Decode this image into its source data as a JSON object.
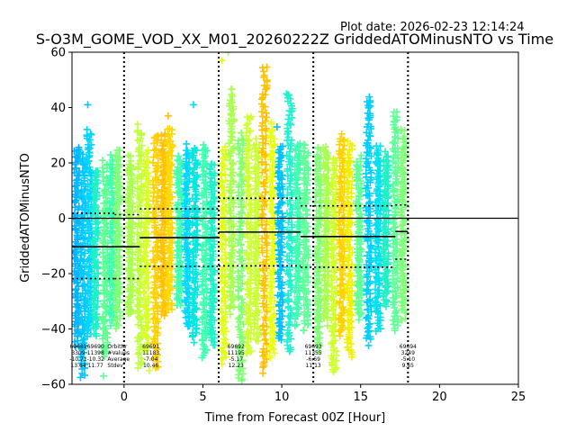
{
  "plot_date": "Plot date: 2026-02-23 12:14:24",
  "chart_data": {
    "type": "scatter",
    "title": "S-O3M_GOME_VOD_XX_M01_20260222Z GriddedATOMinusNTO vs Time",
    "xlabel": "Time from Forecast 00Z [Hour]",
    "ylabel": "GriddedATOMinusNTO",
    "xlim": [
      -3.3,
      25
    ],
    "ylim": [
      -60,
      60
    ],
    "xticks": [
      0,
      5,
      10,
      15,
      20,
      25
    ],
    "yticks": [
      -60,
      -40,
      -20,
      0,
      20,
      40,
      60
    ],
    "forecast_boundaries": [
      0,
      6,
      12,
      18
    ],
    "zero_line": 0,
    "bins": [
      {
        "x0": -3.3,
        "x1": -0.6,
        "mean": -10.3,
        "upper": 1.8,
        "lower": -21.8
      },
      {
        "x0": -0.6,
        "x1": 1.0,
        "mean": -10.3,
        "upper": 1.3,
        "lower": -21.8
      },
      {
        "x0": 1.0,
        "x1": 6.0,
        "mean": -7.0,
        "upper": 3.4,
        "lower": -17.4
      },
      {
        "x0": 6.0,
        "x1": 11.2,
        "mean": -5.0,
        "upper": 7.2,
        "lower": -17.2
      },
      {
        "x0": 11.2,
        "x1": 17.2,
        "mean": -6.6,
        "upper": 4.5,
        "lower": -17.7
      },
      {
        "x0": 17.2,
        "x1": 18.0,
        "mean": -4.8,
        "upper": 4.8,
        "lower": -14.8
      }
    ],
    "point_columns": [
      {
        "x": -3.0,
        "lo": -44,
        "hi": 24,
        "color": "#00b4ff"
      },
      {
        "x": -2.6,
        "lo": -55,
        "hi": 22,
        "color": "#00c8ff"
      },
      {
        "x": -2.2,
        "lo": -40,
        "hi": 30,
        "color": "#00d4ff"
      },
      {
        "x": -1.8,
        "lo": -40,
        "hi": 16,
        "color": "#20f0c8"
      },
      {
        "x": -1.2,
        "lo": -48,
        "hi": 19,
        "color": "#60ff90"
      },
      {
        "x": -0.8,
        "lo": -36,
        "hi": 20,
        "color": "#40ffb0"
      },
      {
        "x": -0.4,
        "lo": -38,
        "hi": 23,
        "color": "#80ff78"
      },
      {
        "x": 0.4,
        "lo": -34,
        "hi": 20,
        "color": "#a8ff50"
      },
      {
        "x": 1.0,
        "lo": -52,
        "hi": 31,
        "color": "#c0ff40"
      },
      {
        "x": 1.4,
        "lo": -46,
        "hi": 22,
        "color": "#d8ff28"
      },
      {
        "x": 2.0,
        "lo": -52,
        "hi": 29,
        "color": "#ffd000"
      },
      {
        "x": 2.5,
        "lo": -34,
        "hi": 28,
        "color": "#ffc000"
      },
      {
        "x": 2.9,
        "lo": -32,
        "hi": 30,
        "color": "#ffd800"
      },
      {
        "x": 3.5,
        "lo": -30,
        "hi": 20,
        "color": "#40ffb0"
      },
      {
        "x": 4.0,
        "lo": -38,
        "hi": 24,
        "color": "#00d8ff"
      },
      {
        "x": 4.5,
        "lo": -42,
        "hi": 24,
        "color": "#00e8e0"
      },
      {
        "x": 5.1,
        "lo": -48,
        "hi": 25,
        "color": "#40ffb0"
      },
      {
        "x": 5.6,
        "lo": -44,
        "hi": 18,
        "color": "#20f0c8"
      },
      {
        "x": 6.3,
        "lo": -50,
        "hi": 24,
        "color": "#e0ff20"
      },
      {
        "x": 6.8,
        "lo": -32,
        "hi": 44,
        "color": "#a8ff50"
      },
      {
        "x": 7.4,
        "lo": -58,
        "hi": 28,
        "color": "#80ff78"
      },
      {
        "x": 7.9,
        "lo": -48,
        "hi": 35,
        "color": "#d0ff30"
      },
      {
        "x": 8.4,
        "lo": -42,
        "hi": 26,
        "color": "#c8ff38"
      },
      {
        "x": 8.9,
        "lo": -52,
        "hi": 52,
        "color": "#ffc000"
      },
      {
        "x": 9.4,
        "lo": -48,
        "hi": 32,
        "color": "#e8ff18"
      },
      {
        "x": 9.9,
        "lo": -42,
        "hi": 25,
        "color": "#00c0ff"
      },
      {
        "x": 10.5,
        "lo": -46,
        "hi": 44,
        "color": "#20f0d0"
      },
      {
        "x": 11.0,
        "lo": -36,
        "hi": 26,
        "color": "#40ffb0"
      },
      {
        "x": 11.5,
        "lo": -38,
        "hi": 24,
        "color": "#60ff98"
      },
      {
        "x": 12.3,
        "lo": -46,
        "hi": 23,
        "color": "#80ff78"
      },
      {
        "x": 12.8,
        "lo": -36,
        "hi": 24,
        "color": "#a8ff50"
      },
      {
        "x": 13.3,
        "lo": -54,
        "hi": 20,
        "color": "#d0ff30"
      },
      {
        "x": 13.8,
        "lo": -40,
        "hi": 28,
        "color": "#ffd000"
      },
      {
        "x": 14.3,
        "lo": -48,
        "hi": 25,
        "color": "#f0f000"
      },
      {
        "x": 14.9,
        "lo": -34,
        "hi": 20,
        "color": "#60ff98"
      },
      {
        "x": 15.5,
        "lo": -42,
        "hi": 42,
        "color": "#00d0ff"
      },
      {
        "x": 16.1,
        "lo": -38,
        "hi": 24,
        "color": "#00e0f0"
      },
      {
        "x": 16.6,
        "lo": -30,
        "hi": 22,
        "color": "#20f0c8"
      },
      {
        "x": 17.2,
        "lo": -38,
        "hi": 36,
        "color": "#60ff98"
      },
      {
        "x": 17.7,
        "lo": -34,
        "hi": 30,
        "color": "#80ff78"
      }
    ],
    "outliers": [
      {
        "x": -2.3,
        "y": 41,
        "color": "#00c8ff"
      },
      {
        "x": 2.8,
        "y": 37,
        "color": "#ffc000"
      },
      {
        "x": 4.4,
        "y": 41,
        "color": "#00d8ff"
      },
      {
        "x": 6.2,
        "y": 57,
        "color": "#e0ff20"
      },
      {
        "x": 6.6,
        "y": 60,
        "color": "#a8ff50"
      },
      {
        "x": 8.9,
        "y": 48,
        "color": "#ffc000"
      },
      {
        "x": 9.7,
        "y": 33,
        "color": "#00c0ff"
      },
      {
        "x": 10.3,
        "y": 45,
        "color": "#20f0d0"
      },
      {
        "x": 15.5,
        "y": -46,
        "color": "#00d0ff"
      },
      {
        "x": -1.3,
        "y": -57,
        "color": "#60ff90"
      },
      {
        "x": 1.6,
        "y": -55,
        "color": "#d8ff28"
      },
      {
        "x": 8.8,
        "y": -56,
        "color": "#ffc000"
      }
    ],
    "stat_header": [
      "OrbitNr",
      "#Values",
      "Average",
      "Stdev"
    ],
    "stat_blocks": [
      {
        "x": -2.9,
        "lines": [
          "69689",
          "3309",
          "-10.71",
          "13.64"
        ]
      },
      {
        "x": -1.8,
        "lines": [
          "69690",
          "11398",
          "-10.32",
          "11.77"
        ]
      },
      {
        "x": 1.7,
        "lines": [
          "69691",
          "11183",
          "-7.04",
          "10.46"
        ]
      },
      {
        "x": 7.1,
        "lines": [
          "69692",
          "11195",
          "-5.17",
          "12.23"
        ]
      },
      {
        "x": 12.0,
        "lines": [
          "69693",
          "11355",
          "-6.69",
          "11.13"
        ]
      },
      {
        "x": 18.0,
        "lines": [
          "69694",
          "3249",
          "-5.10",
          "9.65"
        ]
      }
    ]
  }
}
